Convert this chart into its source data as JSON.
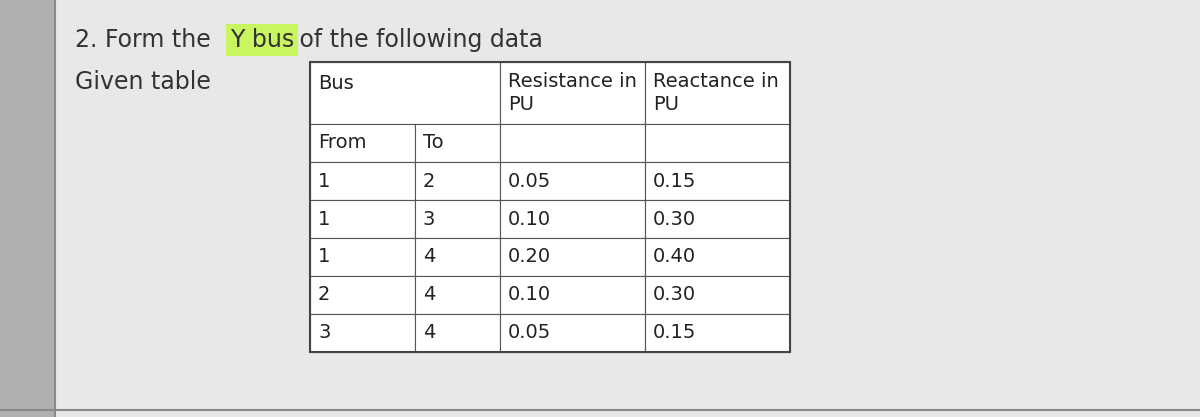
{
  "title_prefix": "2. Form the ",
  "title_highlight": "Y bus",
  "title_suffix": " of the following data",
  "subtitle": "Given table",
  "highlight_color": "#c8f560",
  "bg_left": "#c8c8c8",
  "bg_right": "#e8e8e8",
  "page_color": "#e2e2e2",
  "table_bg": "#ffffff",
  "rows": [
    [
      "1",
      "2",
      "0.05",
      "0.15"
    ],
    [
      "1",
      "3",
      "0.10",
      "0.30"
    ],
    [
      "1",
      "4",
      "0.20",
      "0.40"
    ],
    [
      "2",
      "4",
      "0.10",
      "0.30"
    ],
    [
      "3",
      "4",
      "0.05",
      "0.15"
    ]
  ],
  "font_size": 14,
  "title_font_size": 17
}
